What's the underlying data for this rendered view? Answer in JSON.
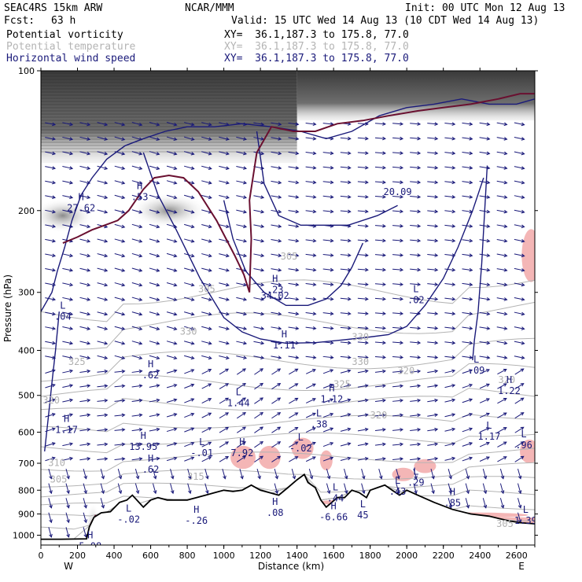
{
  "header": {
    "model": "SEAC4RS 15km ARW",
    "center": "NCAR/MMM",
    "init": "Init: 00 UTC Mon 12 Aug 13",
    "fcst_label": "Fcst:",
    "fcst_value": "63 h",
    "valid": "Valid: 15 UTC Wed 14 Aug 13 (10 CDT Wed 14 Aug 13)",
    "fields": [
      {
        "name": "Potential vorticity",
        "xy": "XY=  36.1,187.3 to 175.8, 77.0",
        "color": "#000000"
      },
      {
        "name": "Potential temperature",
        "xy": "XY=  36.1,187.3 to 175.8, 77.0",
        "color": "#b4b4b4"
      },
      {
        "name": "Horizontal wind speed",
        "xy": "XY=  36.1,187.3 to 175.8, 77.0",
        "color": "#1a1a7a"
      }
    ]
  },
  "chart_data": {
    "type": "cross-section",
    "xlabel": "Distance (km)",
    "ylabel": "Pressure (hPa)",
    "xlim": [
      0,
      2700
    ],
    "ylim": [
      1050,
      100
    ],
    "y_scale": "log",
    "x_ticks": [
      0,
      200,
      400,
      600,
      800,
      1000,
      1200,
      1400,
      1600,
      1800,
      2000,
      2200,
      2400,
      2600
    ],
    "y_ticks": [
      100,
      200,
      300,
      400,
      500,
      600,
      700,
      800,
      900,
      1000
    ],
    "x_end_labels": {
      "left": "W",
      "right": "E"
    },
    "colors": {
      "terrain": "#000000",
      "wind": "#1a1a7a",
      "theta": "#b4b4b4",
      "pv": "#6a1030",
      "shading": "#f4b6b6"
    },
    "terrain": [
      [
        0,
        1020
      ],
      [
        110,
        1020
      ],
      [
        250,
        1018
      ],
      [
        265,
        960
      ],
      [
        290,
        915
      ],
      [
        330,
        895
      ],
      [
        380,
        890
      ],
      [
        430,
        850
      ],
      [
        470,
        840
      ],
      [
        500,
        820
      ],
      [
        560,
        870
      ],
      [
        600,
        840
      ],
      [
        640,
        830
      ],
      [
        690,
        840
      ],
      [
        740,
        840
      ],
      [
        800,
        840
      ],
      [
        850,
        830
      ],
      [
        900,
        820
      ],
      [
        950,
        810
      ],
      [
        1000,
        800
      ],
      [
        1050,
        805
      ],
      [
        1100,
        800
      ],
      [
        1150,
        780
      ],
      [
        1200,
        800
      ],
      [
        1250,
        810
      ],
      [
        1300,
        820
      ],
      [
        1350,
        790
      ],
      [
        1400,
        760
      ],
      [
        1440,
        740
      ],
      [
        1460,
        770
      ],
      [
        1500,
        790
      ],
      [
        1530,
        840
      ],
      [
        1560,
        870
      ],
      [
        1590,
        850
      ],
      [
        1620,
        830
      ],
      [
        1660,
        830
      ],
      [
        1700,
        800
      ],
      [
        1740,
        810
      ],
      [
        1780,
        830
      ],
      [
        1800,
        800
      ],
      [
        1840,
        790
      ],
      [
        1880,
        780
      ],
      [
        1920,
        800
      ],
      [
        1960,
        820
      ],
      [
        2000,
        800
      ],
      [
        2060,
        820
      ],
      [
        2150,
        850
      ],
      [
        2250,
        880
      ],
      [
        2350,
        900
      ],
      [
        2450,
        910
      ],
      [
        2550,
        930
      ],
      [
        2620,
        940
      ],
      [
        2700,
        945
      ]
    ],
    "theta_labels": [
      {
        "x": 1310,
        "p": 255,
        "text": "305"
      },
      {
        "x": 860,
        "p": 300,
        "text": "305"
      },
      {
        "x": 760,
        "p": 370,
        "text": "330"
      },
      {
        "x": 1700,
        "p": 380,
        "text": "330"
      },
      {
        "x": 150,
        "p": 430,
        "text": "325"
      },
      {
        "x": 1700,
        "p": 430,
        "text": "330"
      },
      {
        "x": 1950,
        "p": 450,
        "text": "320"
      },
      {
        "x": 1600,
        "p": 480,
        "text": "325"
      },
      {
        "x": 2500,
        "p": 470,
        "text": "320"
      },
      {
        "x": 10,
        "p": 520,
        "text": "320"
      },
      {
        "x": 1800,
        "p": 560,
        "text": "320"
      },
      {
        "x": 40,
        "p": 710,
        "text": "310"
      },
      {
        "x": 800,
        "p": 760,
        "text": "315"
      },
      {
        "x": 50,
        "p": 770,
        "text": "305"
      },
      {
        "x": 2490,
        "p": 960,
        "text": "305"
      }
    ],
    "extrema": [
      {
        "x": 220,
        "p": 190,
        "text": "H\n27.62"
      },
      {
        "x": 540,
        "p": 180,
        "text": "H\n.53"
      },
      {
        "x": 1280,
        "p": 285,
        "text": "H\n.23"
      },
      {
        "x": 1280,
        "p": 310,
        "text": "34.02"
      },
      {
        "x": 1950,
        "p": 185,
        "text": "20.09"
      },
      {
        "x": 2050,
        "p": 300,
        "text": "L\n.02"
      },
      {
        "x": 120,
        "p": 325,
        "text": "L\n.04"
      },
      {
        "x": 1330,
        "p": 375,
        "text": "H\n1.11"
      },
      {
        "x": 600,
        "p": 435,
        "text": "H\n.62"
      },
      {
        "x": 1590,
        "p": 490,
        "text": "H\n1.12"
      },
      {
        "x": 1080,
        "p": 500,
        "text": "L\n1.44"
      },
      {
        "x": 2380,
        "p": 425,
        "text": "L\n.09"
      },
      {
        "x": 2560,
        "p": 470,
        "text": "H\n1.22"
      },
      {
        "x": 1520,
        "p": 555,
        "text": "L\n.38"
      },
      {
        "x": 140,
        "p": 570,
        "text": "H\n1.17"
      },
      {
        "x": 2450,
        "p": 590,
        "text": "L\n1.17"
      },
      {
        "x": 2640,
        "p": 615,
        "text": "L\n.96"
      },
      {
        "x": 560,
        "p": 620,
        "text": "H\n13.95"
      },
      {
        "x": 880,
        "p": 640,
        "text": "L\n-.01"
      },
      {
        "x": 1100,
        "p": 640,
        "text": "H\n7.92"
      },
      {
        "x": 1420,
        "p": 625,
        "text": "L\n-.02"
      },
      {
        "x": 600,
        "p": 695,
        "text": "H\n.62"
      },
      {
        "x": 2050,
        "p": 740,
        "text": "L\n.29"
      },
      {
        "x": 1950,
        "p": 775,
        "text": "L\n.43"
      },
      {
        "x": 1610,
        "p": 800,
        "text": "L\n.44"
      },
      {
        "x": 2250,
        "p": 820,
        "text": "H\n.85"
      },
      {
        "x": 480,
        "p": 890,
        "text": "L\n-.02"
      },
      {
        "x": 850,
        "p": 895,
        "text": "H\n-.26"
      },
      {
        "x": 1280,
        "p": 860,
        "text": "H\n.08"
      },
      {
        "x": 1600,
        "p": 880,
        "text": "H\n-6.66"
      },
      {
        "x": 1760,
        "p": 870,
        "text": "L\n45"
      },
      {
        "x": 2650,
        "p": 895,
        "text": "L\n1.39"
      },
      {
        "x": 270,
        "p": 1015,
        "text": "H\n5.08"
      }
    ],
    "wind_contours": [
      [
        [
          0,
          330
        ],
        [
          60,
          300
        ],
        [
          90,
          270
        ],
        [
          130,
          240
        ],
        [
          170,
          210
        ],
        [
          220,
          185
        ],
        [
          280,
          170
        ],
        [
          360,
          155
        ],
        [
          460,
          145
        ],
        [
          560,
          140
        ],
        [
          680,
          135
        ],
        [
          800,
          132
        ],
        [
          950,
          132
        ],
        [
          1100,
          130
        ],
        [
          1260,
          132
        ],
        [
          1420,
          135
        ],
        [
          1560,
          140
        ],
        [
          1700,
          135
        ],
        [
          1850,
          125
        ],
        [
          2000,
          120
        ],
        [
          2150,
          118
        ],
        [
          2300,
          115
        ],
        [
          2450,
          118
        ],
        [
          2600,
          118
        ],
        [
          2700,
          115
        ]
      ],
      [
        [
          1000,
          190
        ],
        [
          1050,
          230
        ],
        [
          1120,
          270
        ],
        [
          1220,
          300
        ],
        [
          1340,
          320
        ],
        [
          1460,
          320
        ],
        [
          1560,
          310
        ],
        [
          1640,
          290
        ],
        [
          1700,
          265
        ],
        [
          1760,
          235
        ]
      ],
      [
        [
          560,
          150
        ],
        [
          640,
          185
        ],
        [
          740,
          220
        ],
        [
          870,
          280
        ],
        [
          1000,
          340
        ],
        [
          1100,
          365
        ],
        [
          1200,
          378
        ],
        [
          1340,
          386
        ],
        [
          1500,
          385
        ],
        [
          1640,
          380
        ],
        [
          1780,
          375
        ],
        [
          1900,
          370
        ],
        [
          2000,
          355
        ],
        [
          2100,
          320
        ],
        [
          2200,
          280
        ],
        [
          2280,
          240
        ],
        [
          2360,
          200
        ],
        [
          2420,
          170
        ]
      ],
      [
        [
          1180,
          135
        ],
        [
          1220,
          175
        ],
        [
          1300,
          205
        ],
        [
          1420,
          215
        ],
        [
          1560,
          215
        ],
        [
          1680,
          215
        ],
        [
          1840,
          205
        ],
        [
          1950,
          195
        ]
      ],
      [
        [
          20,
          660
        ],
        [
          40,
          560
        ],
        [
          60,
          470
        ],
        [
          80,
          400
        ],
        [
          100,
          330
        ]
      ],
      [
        [
          2440,
          160
        ],
        [
          2410,
          260
        ],
        [
          2390,
          330
        ],
        [
          2370,
          380
        ],
        [
          2360,
          420
        ]
      ]
    ],
    "pv_contours": [
      [
        [
          120,
          235
        ],
        [
          200,
          228
        ],
        [
          280,
          220
        ],
        [
          350,
          215
        ],
        [
          420,
          210
        ],
        [
          480,
          200
        ],
        [
          560,
          180
        ],
        [
          620,
          170
        ],
        [
          700,
          168
        ],
        [
          780,
          170
        ],
        [
          860,
          182
        ],
        [
          960,
          210
        ],
        [
          1060,
          250
        ],
        [
          1110,
          275
        ],
        [
          1140,
          300
        ]
      ],
      [
        [
          1140,
          300
        ],
        [
          1150,
          230
        ],
        [
          1140,
          190
        ],
        [
          1180,
          150
        ],
        [
          1260,
          132
        ],
        [
          1380,
          135
        ],
        [
          1500,
          135
        ],
        [
          1620,
          130
        ],
        [
          1760,
          128
        ],
        [
          1900,
          125
        ],
        [
          2060,
          122
        ],
        [
          2200,
          120
        ],
        [
          2350,
          118
        ],
        [
          2500,
          115
        ],
        [
          2620,
          112
        ],
        [
          2700,
          112
        ]
      ],
      [
        [
          250,
          1020
        ],
        [
          260,
          990
        ],
        [
          270,
          950
        ],
        [
          285,
          925
        ],
        [
          300,
          905
        ]
      ],
      [
        [
          590,
          845
        ],
        [
          640,
          832
        ],
        [
          700,
          845
        ],
        [
          760,
          845
        ]
      ]
    ],
    "shaded_regions": [
      {
        "x": 1105,
        "p": 680,
        "rx": 16,
        "rp": 40
      },
      {
        "x": 1250,
        "p": 680,
        "rx": 14,
        "rp": 40
      },
      {
        "x": 1430,
        "p": 650,
        "rx": 14,
        "rp": 35
      },
      {
        "x": 1560,
        "p": 690,
        "rx": 8,
        "rp": 35
      },
      {
        "x": 1980,
        "p": 740,
        "rx": 14,
        "rp": 25
      },
      {
        "x": 2100,
        "p": 710,
        "rx": 14,
        "rp": 25
      },
      {
        "x": 2670,
        "p": 660,
        "rx": 12,
        "rp": 40
      },
      {
        "x": 2680,
        "p": 250,
        "rx": 12,
        "rp": 35
      },
      {
        "x": 2560,
        "p": 930,
        "rx": 100,
        "rp": 15
      },
      {
        "x": 2320,
        "p": 905,
        "rx": 80,
        "rp": 12
      },
      {
        "x": 1690,
        "p": 850,
        "rx": 40,
        "rp": 12
      }
    ]
  }
}
